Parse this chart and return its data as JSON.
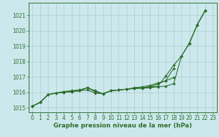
{
  "bg_color": "#cce8ec",
  "grid_color": "#aacccc",
  "line_color": "#2d6e2d",
  "xlabel": "Graphe pression niveau de la mer (hPa)",
  "xlabel_fontsize": 6.5,
  "tick_fontsize": 5.5,
  "xlim": [
    -0.5,
    23.5
  ],
  "ylim": [
    1014.7,
    1021.8
  ],
  "yticks": [
    1015,
    1016,
    1017,
    1018,
    1019,
    1020,
    1021
  ],
  "xticks": [
    0,
    1,
    2,
    3,
    4,
    5,
    6,
    7,
    8,
    9,
    10,
    11,
    12,
    13,
    14,
    15,
    16,
    17,
    18,
    19,
    20,
    21,
    22,
    23
  ],
  "series": [
    [
      1015.1,
      1015.35,
      1015.85,
      1015.95,
      1016.0,
      1016.05,
      1016.1,
      1016.3,
      1016.1,
      1015.9,
      1016.1,
      1016.15,
      1016.2,
      1016.25,
      1016.25,
      1016.3,
      1016.35,
      1016.4,
      1016.55,
      1018.35,
      1019.15,
      1020.35,
      1021.25,
      null
    ],
    [
      1015.1,
      1015.35,
      1015.85,
      1015.95,
      1016.0,
      1016.05,
      1016.1,
      1016.15,
      1015.95,
      1015.9,
      1016.1,
      1016.15,
      1016.2,
      1016.25,
      1016.3,
      1016.35,
      1016.4,
      1017.05,
      1017.75,
      1018.35,
      1019.2,
      1020.4,
      1021.3,
      null
    ],
    [
      1015.1,
      1015.35,
      1015.85,
      1015.95,
      1016.0,
      1016.05,
      1016.1,
      1016.3,
      1016.05,
      1015.9,
      1016.1,
      1016.15,
      1016.2,
      1016.25,
      1016.3,
      1016.35,
      1016.55,
      1016.75,
      1017.55,
      null,
      null,
      null,
      null,
      null
    ],
    [
      1015.1,
      1015.35,
      1015.85,
      1015.95,
      1016.05,
      1016.1,
      1016.15,
      1016.3,
      1016.05,
      1015.9,
      1016.1,
      1016.15,
      1016.2,
      1016.3,
      1016.35,
      1016.45,
      1016.6,
      1016.75,
      1016.95,
      null,
      null,
      null,
      null,
      null
    ]
  ],
  "marker": "D",
  "marker_size": 2.0,
  "line_width": 0.8
}
